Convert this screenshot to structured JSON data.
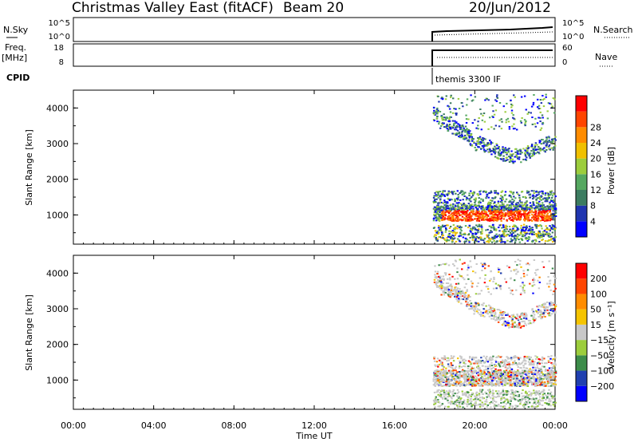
{
  "header": {
    "title": "Christmas Valley East (fitACF)",
    "beam": "Beam 20",
    "date": "20/Jun/2012"
  },
  "top_panels": {
    "nsky_label": "N.Sky",
    "nsky_ticks": [
      "10^5",
      "10^0"
    ],
    "nsearch_label": "N.Search",
    "nsearch_ticks": [
      "10^5",
      "10^0"
    ],
    "freq_label_1": "Freq.",
    "freq_label_2": "[MHz]",
    "freq_ticks": [
      "18",
      "8"
    ],
    "nave_label": "Nave",
    "nave_ticks": [
      "60",
      "0"
    ],
    "cpid_label": "CPID",
    "cpid_text": "themis 3300 IF"
  },
  "colors": {
    "power_scale": [
      "#0000ff",
      "#2035b0",
      "#3c7c60",
      "#55a860",
      "#9ccd3c",
      "#f0c000",
      "#ff8c00",
      "#ff4500",
      "#ff0000"
    ],
    "velocity_scale": [
      "#ff0000",
      "#ff4500",
      "#ff8c00",
      "#f5c400",
      "#c8c8c8",
      "#9ccd3c",
      "#3c8c4a",
      "#2040b0",
      "#0000ff"
    ]
  },
  "chart_data": [
    {
      "type": "heatmap",
      "title": "Power",
      "xlabel": "",
      "ylabel": "Slant Range [km]",
      "xlim": [
        "00:00",
        "24:00"
      ],
      "ylim": [
        180,
        4500
      ],
      "yticks": [
        "1000",
        "2000",
        "3000",
        "4000"
      ],
      "colorbar_label": "Power [dB]",
      "colorbar_ticks": [
        "4",
        "8",
        "12",
        "16",
        "20",
        "24",
        "28"
      ],
      "series": [
        {
          "name": "",
          "x_start_hour": 17.9,
          "range_band_km": [
            950,
            1050
          ],
          "level": "high"
        },
        {
          "name": "",
          "x_start_hour": 17.9,
          "range_band_km": [
            2600,
            3100
          ],
          "level": "mid"
        }
      ]
    },
    {
      "type": "heatmap",
      "title": "Velocity",
      "xlabel": "Time UT",
      "ylabel": "Slant Range [km]",
      "xlim": [
        "00:00",
        "24:00"
      ],
      "ylim": [
        180,
        4500
      ],
      "xticks": [
        "00:00",
        "04:00",
        "08:00",
        "12:00",
        "16:00",
        "20:00",
        "00:00"
      ],
      "yticks": [
        "1000",
        "2000",
        "3000",
        "4000"
      ],
      "colorbar_label": "Velocity [m s⁻¹]",
      "colorbar_ticks": [
        "200",
        "100",
        "50",
        "15",
        "−15",
        "−50",
        "−100",
        "−200"
      ],
      "series": [
        {
          "name": "",
          "x_start_hour": 17.9,
          "range_band_km": [
            900,
            1300
          ],
          "level": "ground-scatter"
        },
        {
          "name": "",
          "x_start_hour": 17.9,
          "range_band_km": [
            2600,
            3100
          ],
          "level": "ground-scatter"
        }
      ]
    }
  ]
}
